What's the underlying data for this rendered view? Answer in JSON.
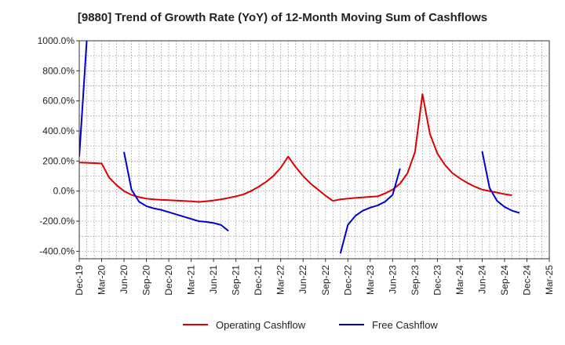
{
  "chart_data": {
    "type": "line",
    "title": "[9880]  Trend of Growth Rate (YoY) of 12-Month Moving Sum of Cashflows",
    "xlabel": "",
    "ylabel": "",
    "x_ticks": [
      "Dec-19",
      "Mar-20",
      "Jun-20",
      "Sep-20",
      "Dec-20",
      "Mar-21",
      "Jun-21",
      "Sep-21",
      "Dec-21",
      "Mar-22",
      "Jun-22",
      "Sep-22",
      "Dec-22",
      "Mar-23",
      "Jun-23",
      "Sep-23",
      "Dec-23",
      "Mar-24",
      "Jun-24",
      "Sep-24",
      "Dec-24",
      "Mar-25"
    ],
    "y_ticks": [
      "1000.0%",
      "800.0%",
      "600.0%",
      "400.0%",
      "200.0%",
      "0.0%",
      "-200.0%",
      "-400.0%"
    ],
    "y_tick_values": [
      1000,
      800,
      600,
      400,
      200,
      0,
      -200,
      -400
    ],
    "ylim": [
      -450,
      1000
    ],
    "grid": true,
    "legend_position": "bottom",
    "series": [
      {
        "name": "Operating Cashflow",
        "color": "#dd0000",
        "values": [
          190,
          188,
          186,
          184,
          90,
          40,
          0,
          -25,
          -40,
          -50,
          -55,
          -58,
          -60,
          -63,
          -65,
          -68,
          -72,
          -68,
          -62,
          -55,
          -45,
          -35,
          -22,
          0,
          28,
          60,
          100,
          155,
          230,
          160,
          100,
          50,
          10,
          -30,
          -65,
          -55,
          -50,
          -45,
          -42,
          -38,
          -35,
          -15,
          10,
          50,
          120,
          260,
          645,
          380,
          250,
          175,
          120,
          85,
          55,
          30,
          10,
          0,
          -10,
          -20,
          -28,
          null,
          null,
          null,
          null,
          null,
          null,
          null
        ]
      },
      {
        "name": "Free Cashflow",
        "color": "#0000cc",
        "values": [
          230,
          1000,
          null,
          null,
          null,
          null,
          260,
          10,
          -70,
          -100,
          -115,
          -125,
          -140,
          -155,
          -170,
          -185,
          -200,
          -205,
          -212,
          -225,
          -265,
          null,
          null,
          null,
          null,
          null,
          null,
          null,
          null,
          null,
          null,
          null,
          null,
          null,
          null,
          -415,
          -225,
          -165,
          -130,
          -110,
          -95,
          -70,
          -25,
          150,
          null,
          null,
          null,
          null,
          null,
          null,
          null,
          null,
          null,
          null,
          265,
          20,
          -65,
          -105,
          -130,
          -145,
          null,
          null,
          null,
          null,
          null,
          null
        ]
      }
    ]
  }
}
